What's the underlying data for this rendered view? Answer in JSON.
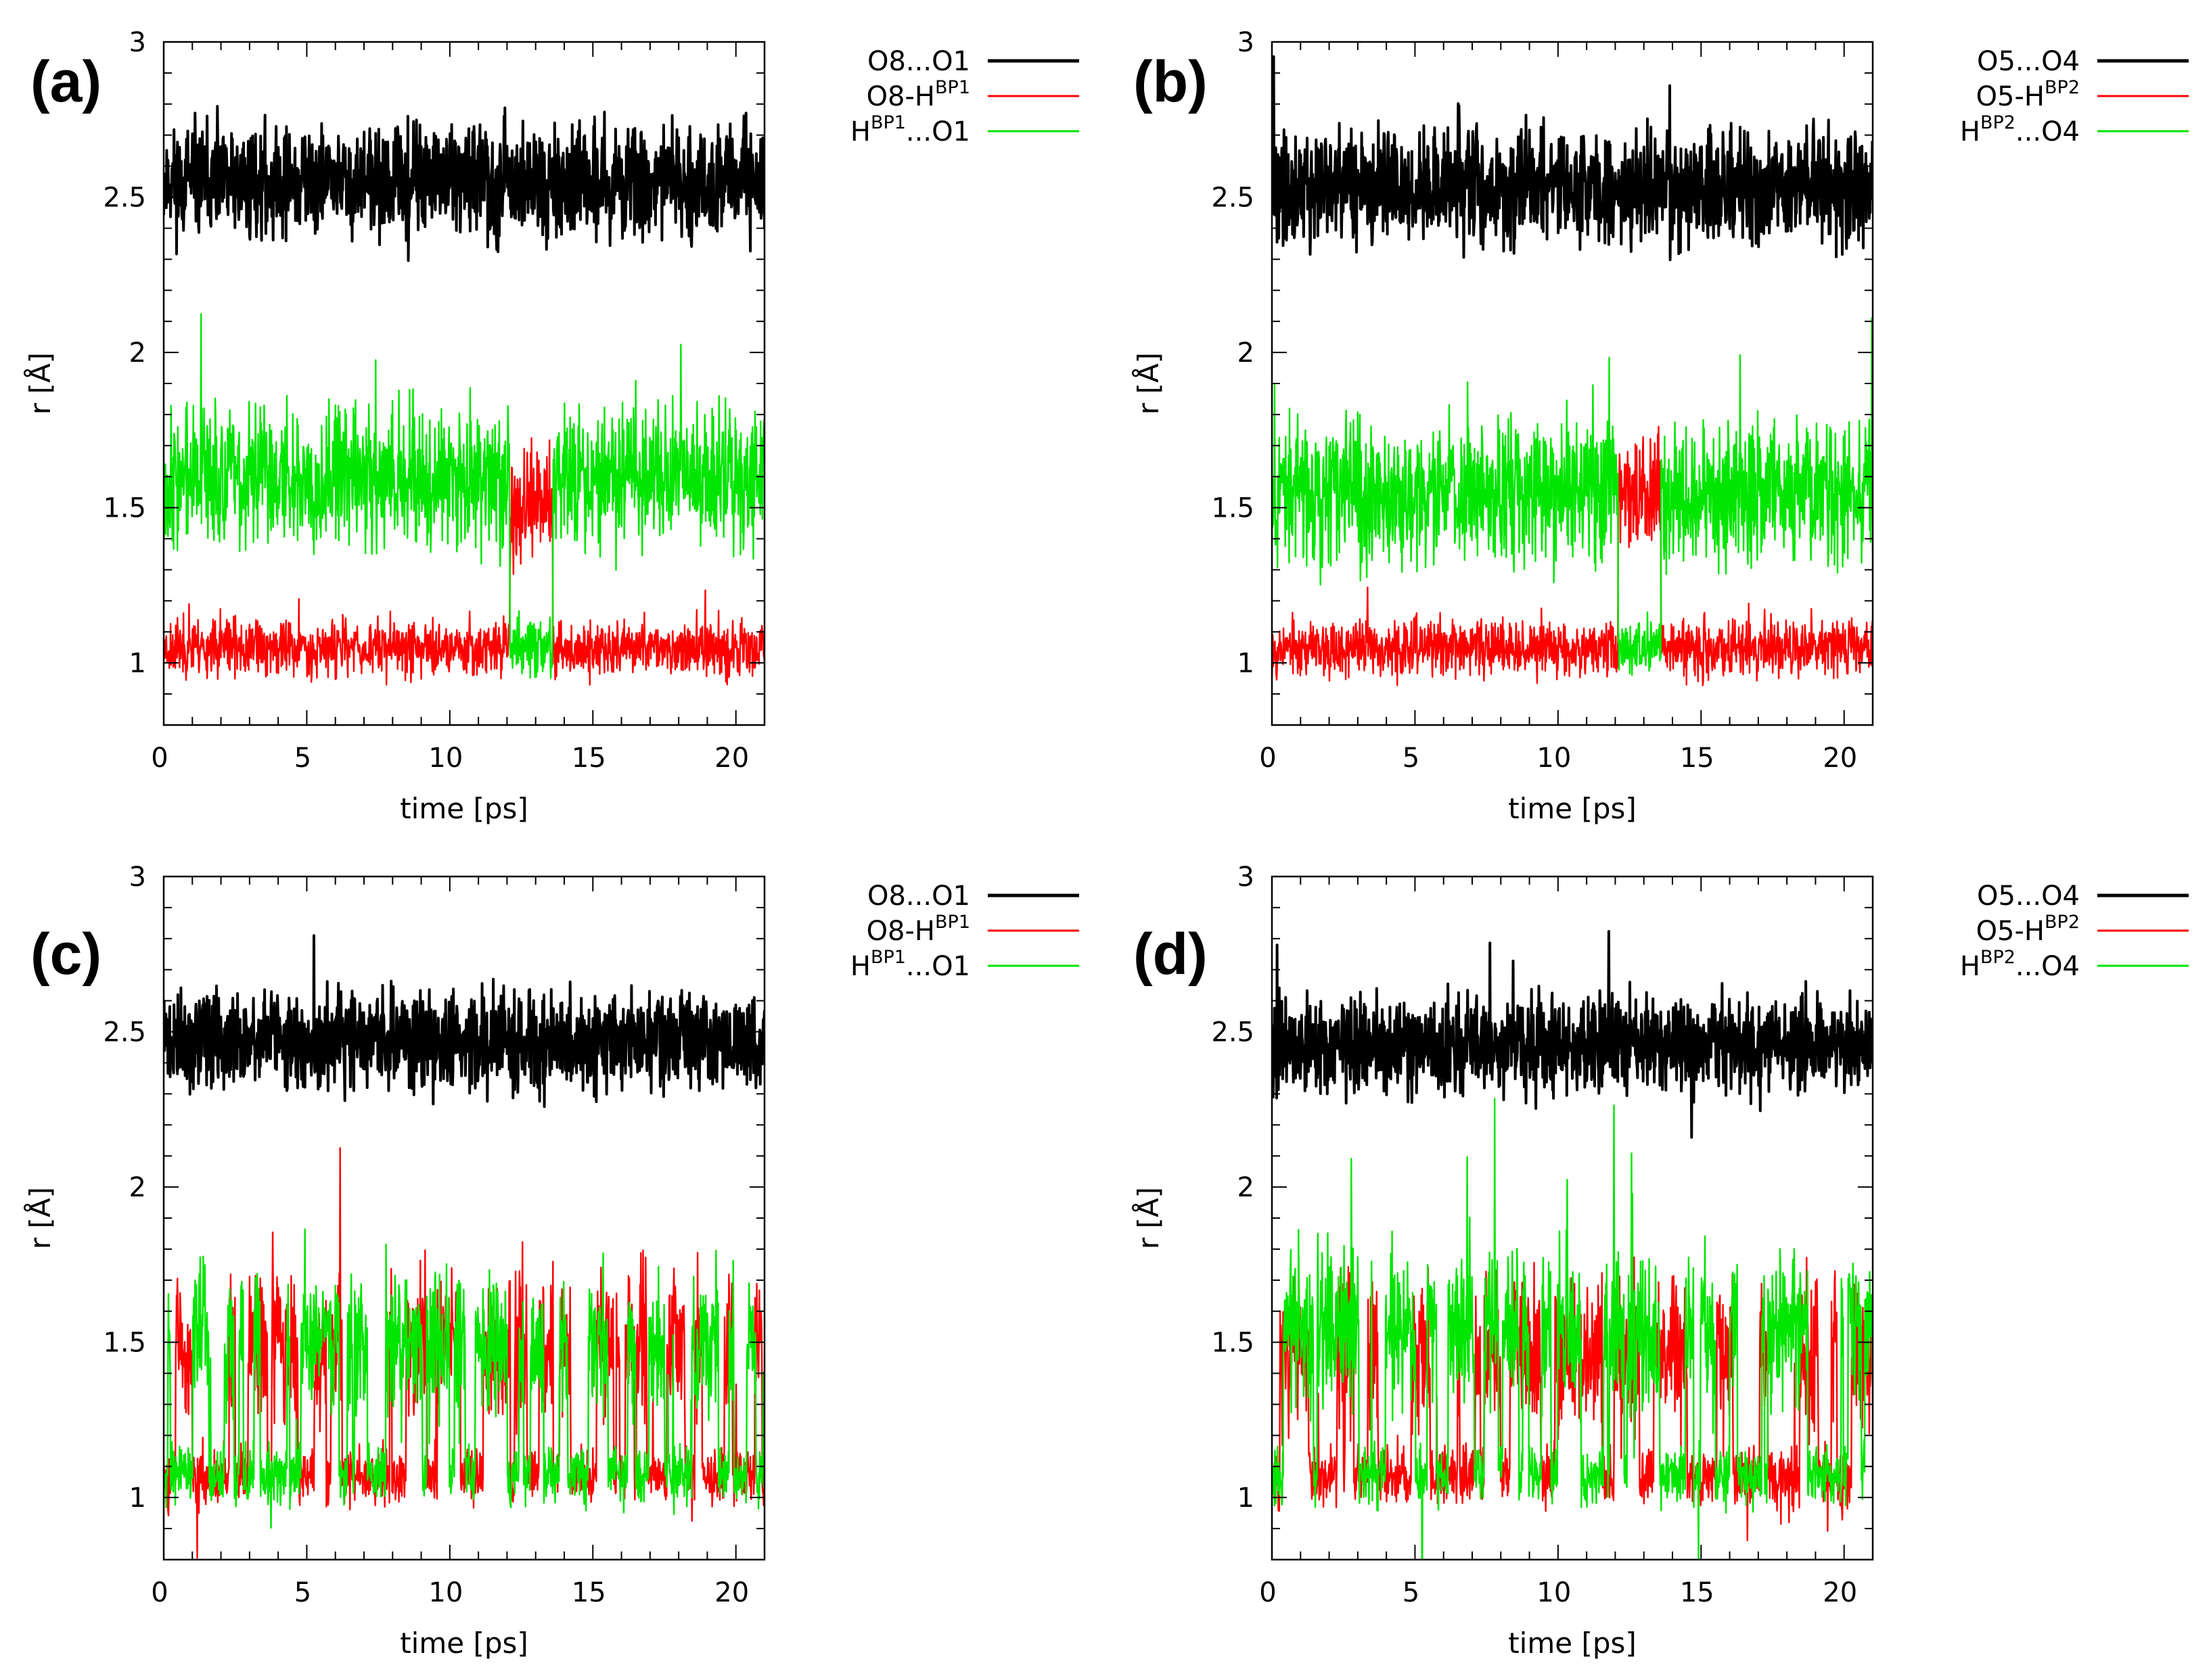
{
  "figure_colors": {
    "black": "#000000",
    "red": "#ff0000",
    "green": "#00e600"
  },
  "chart_data": [
    {
      "id": "a",
      "type": "line",
      "panel_label": "(a)",
      "xlabel": "time [ps]",
      "ylabel": "r [Å]",
      "xlim": [
        0,
        21
      ],
      "ylim": [
        0.8,
        3.0
      ],
      "x_ticks": [
        "0",
        "5",
        "10",
        "15",
        "20"
      ],
      "y_ticks": [
        "1",
        "1.5",
        "2",
        "2.5",
        "3"
      ],
      "legend_position": "outside-top-right",
      "legend": [
        {
          "prefix": "O8...O1",
          "sup": "",
          "suffix": "",
          "color": "#000000"
        },
        {
          "prefix": "O8-H",
          "sup": "BP1",
          "suffix": "",
          "color": "#ff0000"
        },
        {
          "prefix": "H",
          "sup": "BP1",
          "suffix": "...O1",
          "color": "#00e600"
        }
      ],
      "series": [
        {
          "name": "O8...O1",
          "color": "#000000",
          "mean": 2.55,
          "noise": 0.085,
          "spike": 0.4,
          "seed": 11
        },
        {
          "name": "O8-HBP1",
          "color": "#ff0000",
          "mean": 1.05,
          "noise": 0.045,
          "spike": 0.15,
          "seed": 23,
          "segments": [
            {
              "from": 12.1,
              "to": 13.6,
              "mean": 1.5,
              "noise": 0.1
            }
          ]
        },
        {
          "name": "HBP1...O1",
          "color": "#00e600",
          "mean": 1.6,
          "noise": 0.11,
          "spike": 0.55,
          "seed": 37,
          "segments": [
            {
              "from": 12.1,
              "to": 13.6,
              "mean": 1.05,
              "noise": 0.045
            }
          ]
        }
      ]
    },
    {
      "id": "b",
      "type": "line",
      "panel_label": "(b)",
      "xlabel": "time [ps]",
      "ylabel": "r [Å]",
      "xlim": [
        0,
        21
      ],
      "ylim": [
        0.8,
        3.0
      ],
      "x_ticks": [
        "0",
        "5",
        "10",
        "15",
        "20"
      ],
      "y_ticks": [
        "1",
        "1.5",
        "2",
        "2.5",
        "3"
      ],
      "legend_position": "outside-top-right",
      "legend": [
        {
          "prefix": "O5...O4",
          "sup": "",
          "suffix": "",
          "color": "#000000"
        },
        {
          "prefix": "O5-H",
          "sup": "BP2",
          "suffix": "",
          "color": "#ff0000"
        },
        {
          "prefix": "H",
          "sup": "BP2",
          "suffix": "...O4",
          "color": "#00e600"
        }
      ],
      "series": [
        {
          "name": "O5...O4",
          "color": "#000000",
          "mean": 2.53,
          "noise": 0.085,
          "spike": 0.3,
          "seed": 41
        },
        {
          "name": "O5-HBP2",
          "color": "#ff0000",
          "mean": 1.05,
          "noise": 0.045,
          "spike": 0.15,
          "seed": 53,
          "segments": [
            {
              "from": 12.1,
              "to": 13.6,
              "mean": 1.55,
              "noise": 0.1
            }
          ]
        },
        {
          "name": "HBP2...O4",
          "color": "#00e600",
          "mean": 1.55,
          "noise": 0.11,
          "spike": 0.45,
          "seed": 67,
          "segments": [
            {
              "from": 12.1,
              "to": 13.6,
              "mean": 1.05,
              "noise": 0.045
            }
          ]
        }
      ]
    },
    {
      "id": "c",
      "type": "line",
      "panel_label": "(c)",
      "xlabel": "time [ps]",
      "ylabel": "r [Å]",
      "xlim": [
        0,
        21
      ],
      "ylim": [
        0.8,
        3.0
      ],
      "x_ticks": [
        "0",
        "5",
        "10",
        "15",
        "20"
      ],
      "y_ticks": [
        "1",
        "1.5",
        "2",
        "2.5",
        "3"
      ],
      "legend_position": "outside-top-right",
      "legend": [
        {
          "prefix": "O8...O1",
          "sup": "",
          "suffix": "",
          "color": "#000000"
        },
        {
          "prefix": "O8-H",
          "sup": "BP1",
          "suffix": "",
          "color": "#ff0000"
        },
        {
          "prefix": "H",
          "sup": "BP1",
          "suffix": "...O1",
          "color": "#00e600"
        }
      ],
      "series": [
        {
          "name": "O8...O1",
          "color": "#000000",
          "mean": 2.47,
          "noise": 0.075,
          "spike": 0.3,
          "seed": 71,
          "switching": false
        },
        {
          "name": "O8-HBP1",
          "color": "#ff0000",
          "mean": 1.3,
          "noise": 0.2,
          "spike": 0.45,
          "seed": 83,
          "switching": true,
          "low": 1.07,
          "high": 1.5
        },
        {
          "name": "HBP1...O1",
          "color": "#00e600",
          "mean": 1.3,
          "noise": 0.2,
          "spike": 0.45,
          "seed": 97,
          "switching": true,
          "low": 1.07,
          "high": 1.5
        }
      ]
    },
    {
      "id": "d",
      "type": "line",
      "panel_label": "(d)",
      "xlabel": "time [ps]",
      "ylabel": "r [Å]",
      "xlim": [
        0,
        21
      ],
      "ylim": [
        0.8,
        3.0
      ],
      "x_ticks": [
        "0",
        "5",
        "10",
        "15",
        "20"
      ],
      "y_ticks": [
        "1",
        "1.5",
        "2",
        "2.5",
        "3"
      ],
      "legend_position": "outside-top-right",
      "legend": [
        {
          "prefix": "O5...O4",
          "sup": "",
          "suffix": "",
          "color": "#000000"
        },
        {
          "prefix": "O5-H",
          "sup": "BP2",
          "suffix": "",
          "color": "#ff0000"
        },
        {
          "prefix": "H",
          "sup": "BP2",
          "suffix": "...O4",
          "color": "#00e600"
        }
      ],
      "series": [
        {
          "name": "O5...O4",
          "color": "#000000",
          "mean": 2.46,
          "noise": 0.075,
          "spike": 0.35,
          "seed": 101
        },
        {
          "name": "O5-HBP2",
          "color": "#ff0000",
          "mean": 1.3,
          "noise": 0.2,
          "spike": 0.45,
          "seed": 113,
          "switching": true,
          "low": 1.07,
          "high": 1.47
        },
        {
          "name": "HBP2...O4",
          "color": "#00e600",
          "mean": 1.3,
          "noise": 0.2,
          "spike": 0.75,
          "seed": 127,
          "switching": true,
          "low": 1.07,
          "high": 1.55
        }
      ]
    }
  ]
}
